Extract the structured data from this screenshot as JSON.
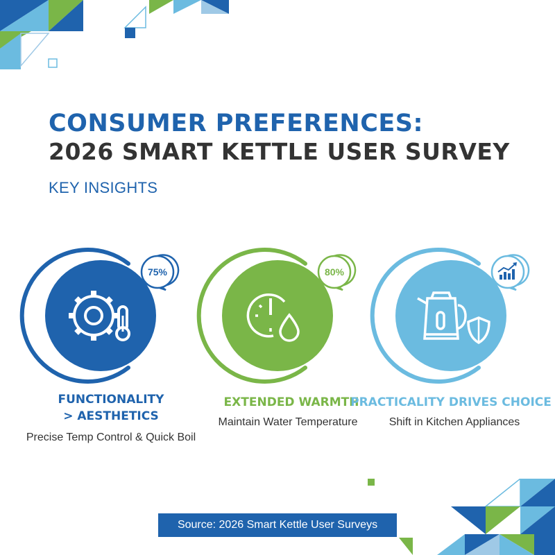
{
  "header": {
    "title_line1": "CONSUMER PREFERENCES:",
    "title_line2": "2026 SMART KETTLE USER SURVEY",
    "subtitle": "KEY INSIGHTS"
  },
  "insights": [
    {
      "percent": "75%",
      "heading_line1": "FUNCTIONALITY",
      "heading_line2": "> AESTHETICS",
      "description": "Precise Temp Control & Quick Boil",
      "icon": "gear-thermometer-icon",
      "color": "#1f63ad"
    },
    {
      "percent": "80%",
      "heading_line1": "EXTENDED WARMTH",
      "description": "Maintain Water Temperature",
      "icon": "clock-droplet-icon",
      "color": "#7ab648"
    },
    {
      "heading_line1": "PRACTICALITY DRIVES CHOICE",
      "description": "Shift in Kitchen Appliances",
      "icon": "kettle-shield-icon",
      "badge_icon": "trend-up-chart-icon",
      "color": "#6bbbe0"
    }
  ],
  "footer": {
    "source": "Source: 2026 Smart Kettle User Surveys"
  },
  "colors": {
    "blue": "#1f63ad",
    "green": "#7ab648",
    "light_blue": "#6bbbe0",
    "text": "#333333"
  }
}
